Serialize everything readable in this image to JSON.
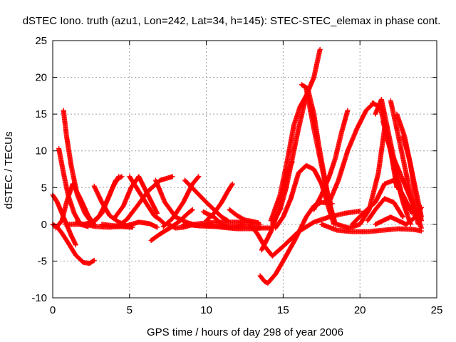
{
  "chart_data": {
    "type": "scatter",
    "title": "dSTEC Iono. truth (azu1, Lon=242, Lat=34, h=145): STEC-STEC_elemax in phase cont.",
    "xlabel": "GPS time / hours of day 298 of year 2006",
    "ylabel": "dSTEC  / TECUs",
    "xlim": [
      0,
      25
    ],
    "ylim": [
      -10,
      25
    ],
    "xticks": [
      0,
      5,
      10,
      15,
      20,
      25
    ],
    "yticks": [
      -10,
      -5,
      0,
      5,
      10,
      15,
      20,
      25
    ],
    "grid": true,
    "marker": "+",
    "color": "#ff0000",
    "series": [
      {
        "x": [
          0.0,
          0.3,
          0.6,
          1.0,
          1.5,
          2.0,
          2.4,
          2.7
        ],
        "y": [
          0.0,
          -0.4,
          -1.2,
          -2.5,
          -4.2,
          -5.2,
          -5.3,
          -4.9
        ]
      },
      {
        "x": [
          0.0,
          0.3,
          0.6,
          0.9,
          1.2,
          1.5
        ],
        "y": [
          4.0,
          3.0,
          1.5,
          0.0,
          -1.5,
          -2.8
        ]
      },
      {
        "x": [
          0.4,
          0.7,
          1.0,
          1.4,
          1.8,
          2.3
        ],
        "y": [
          10.3,
          7.0,
          4.0,
          1.5,
          0.0,
          -0.3
        ]
      },
      {
        "x": [
          0.7,
          0.9,
          1.2,
          1.6,
          2.1,
          2.6
        ],
        "y": [
          15.5,
          12.0,
          8.0,
          4.0,
          1.5,
          0.0
        ]
      },
      {
        "x": [
          0.2,
          0.6,
          0.9,
          1.3,
          1.8,
          2.3,
          2.7
        ],
        "y": [
          -0.5,
          0.5,
          3.0,
          5.5,
          3.5,
          1.2,
          0.0
        ]
      },
      {
        "x": [
          0.8,
          1.3,
          2.0,
          2.8,
          3.6,
          4.4,
          5.2
        ],
        "y": [
          0.0,
          0.0,
          0.0,
          -0.3,
          -0.4,
          -0.3,
          -0.4
        ]
      },
      {
        "x": [
          1.5,
          2.0,
          2.6,
          3.2,
          3.9,
          4.3
        ],
        "y": [
          0.3,
          0.0,
          0.3,
          1.5,
          5.0,
          6.5
        ]
      },
      {
        "x": [
          2.7,
          3.2,
          3.7,
          4.3,
          4.8,
          5.2
        ],
        "y": [
          5.2,
          3.0,
          1.2,
          0.3,
          -0.2,
          -0.4
        ]
      },
      {
        "x": [
          2.5,
          3.0,
          3.6,
          4.1,
          4.5
        ],
        "y": [
          0.0,
          1.0,
          3.5,
          6.0,
          6.5
        ]
      },
      {
        "x": [
          3.2,
          4.0,
          4.8,
          5.6,
          6.3,
          6.8
        ],
        "y": [
          0.0,
          -0.2,
          -0.2,
          0.3,
          0.1,
          -0.4
        ]
      },
      {
        "x": [
          4.0,
          4.6,
          5.1,
          5.6,
          6.2,
          6.8
        ],
        "y": [
          0.8,
          2.5,
          5.0,
          6.5,
          4.0,
          1.5
        ]
      },
      {
        "x": [
          4.2,
          4.8,
          5.5,
          6.2,
          7.0,
          7.8
        ],
        "y": [
          -0.3,
          0.6,
          2.5,
          4.5,
          6.0,
          6.5
        ]
      },
      {
        "x": [
          5.0,
          5.6,
          6.2,
          6.6,
          7.0,
          7.3
        ],
        "y": [
          6.5,
          4.5,
          2.5,
          1.2,
          0.6,
          0.0
        ]
      },
      {
        "x": [
          6.7,
          7.3,
          8.0,
          8.8,
          9.5,
          10.3,
          11.0,
          12.0,
          13.0,
          13.6
        ],
        "y": [
          6.0,
          3.0,
          1.0,
          0.2,
          -0.2,
          -0.2,
          -0.4,
          -0.6,
          -0.6,
          -0.5
        ]
      },
      {
        "x": [
          6.4,
          7.0,
          7.7,
          8.3,
          8.8,
          9.1
        ],
        "y": [
          -2.2,
          -1.3,
          -0.4,
          0.5,
          1.5,
          2.0
        ]
      },
      {
        "x": [
          7.2,
          7.8,
          8.5,
          9.1,
          9.5
        ],
        "y": [
          -0.3,
          0.8,
          3.0,
          5.5,
          6.5
        ]
      },
      {
        "x": [
          7.5,
          8.0,
          8.5,
          9.2,
          10.0,
          11.0,
          12.0,
          13.0,
          13.5
        ],
        "y": [
          0.0,
          -0.5,
          -0.4,
          0.0,
          0.2,
          0.3,
          0.3,
          0.2,
          0.0
        ]
      },
      {
        "x": [
          8.6,
          9.3,
          10.0,
          10.5,
          11.0,
          11.4
        ],
        "y": [
          6.0,
          4.5,
          3.0,
          2.0,
          1.0,
          0.5
        ]
      },
      {
        "x": [
          8.5,
          9.5,
          10.5,
          11.5,
          12.5,
          13.5,
          14.2
        ],
        "y": [
          0.0,
          -0.2,
          -0.3,
          -0.3,
          -0.3,
          -0.5,
          -0.5
        ]
      },
      {
        "x": [
          9.8,
          10.5,
          11.0,
          11.5,
          12.0,
          12.4
        ],
        "y": [
          1.7,
          1.0,
          0.0,
          -0.5,
          -0.4,
          -0.1
        ]
      },
      {
        "x": [
          10.0,
          10.5,
          11.0,
          11.4,
          11.7
        ],
        "y": [
          0.5,
          1.5,
          3.0,
          4.5,
          5.5
        ]
      },
      {
        "x": [
          11.5,
          12.0,
          12.5,
          13.0,
          13.4
        ],
        "y": [
          2.0,
          1.2,
          0.6,
          0.4,
          0.2
        ]
      },
      {
        "x": [
          12.8,
          13.3,
          13.8,
          14.3,
          15.0,
          16.0,
          17.0,
          18.0,
          19.0,
          20.0
        ],
        "y": [
          0.0,
          -1.2,
          -3.0,
          -4.3,
          -3.0,
          -1.0,
          0.3,
          1.0,
          1.5,
          1.8
        ]
      },
      {
        "x": [
          13.5,
          13.8,
          14.0,
          14.5,
          15.0,
          15.8,
          16.5,
          17.0,
          17.5,
          18.2
        ],
        "y": [
          -7.0,
          -7.8,
          -8.0,
          -6.8,
          -5.0,
          -2.0,
          1.0,
          2.5,
          3.0,
          2.8
        ]
      },
      {
        "x": [
          13.6,
          14.2,
          14.8,
          15.2,
          15.6
        ],
        "y": [
          -3.5,
          -1.0,
          2.5,
          7.0,
          8.5
        ]
      },
      {
        "x": [
          14.3,
          14.8,
          15.2,
          15.6,
          16.0,
          16.5,
          17.0,
          17.4
        ],
        "y": [
          0.0,
          2.0,
          5.0,
          9.0,
          13.0,
          17.5,
          20.0,
          23.8
        ]
      },
      {
        "x": [
          14.2,
          14.8,
          15.3,
          15.7,
          16.1,
          16.5
        ],
        "y": [
          0.5,
          4.0,
          9.0,
          13.5,
          16.0,
          17.5
        ]
      },
      {
        "x": [
          14.5,
          15.0,
          15.5,
          16.0,
          16.5,
          17.0,
          17.5,
          18.0,
          18.3
        ],
        "y": [
          -0.5,
          1.0,
          3.5,
          7.0,
          8.0,
          7.5,
          5.5,
          2.0,
          0.0
        ]
      },
      {
        "x": [
          16.2,
          16.6,
          17.0,
          17.3,
          17.6,
          18.0,
          18.4
        ],
        "y": [
          19.0,
          18.5,
          15.0,
          11.0,
          7.5,
          3.0,
          0.0
        ]
      },
      {
        "x": [
          16.5,
          17.0,
          17.5,
          18.0,
          18.4
        ],
        "y": [
          18.5,
          13.0,
          8.0,
          3.0,
          0.0
        ]
      },
      {
        "x": [
          17.0,
          17.5,
          18.0,
          18.4,
          18.8,
          19.2
        ],
        "y": [
          2.0,
          4.0,
          6.5,
          9.0,
          12.5,
          15.5
        ]
      },
      {
        "x": [
          18.0,
          18.6,
          19.2,
          19.8,
          20.4,
          20.9
        ],
        "y": [
          3.0,
          6.0,
          10.0,
          13.0,
          15.5,
          16.5
        ]
      },
      {
        "x": [
          17.5,
          18.5,
          19.5,
          20.5,
          21.5,
          22.5,
          23.5,
          24.0
        ],
        "y": [
          0.0,
          -0.8,
          -1.0,
          -1.0,
          -0.8,
          -0.6,
          -0.7,
          -0.9
        ]
      },
      {
        "x": [
          18.5,
          19.3,
          20.0,
          20.6,
          21.2,
          21.6,
          22.0,
          22.4
        ],
        "y": [
          0.0,
          -0.5,
          0.0,
          2.0,
          7.0,
          13.0,
          10.0,
          5.0
        ]
      },
      {
        "x": [
          20.8,
          21.3,
          21.8,
          22.3,
          22.8,
          23.3
        ],
        "y": [
          16.5,
          16.0,
          12.0,
          7.0,
          3.0,
          0.0
        ]
      },
      {
        "x": [
          21.0,
          21.4,
          21.8,
          22.2,
          22.6,
          23.0
        ],
        "y": [
          15.0,
          17.0,
          13.0,
          9.0,
          5.0,
          2.0
        ]
      },
      {
        "x": [
          22.0,
          22.5,
          23.0,
          23.4,
          23.8
        ],
        "y": [
          16.8,
          12.0,
          7.0,
          3.0,
          0.0
        ]
      },
      {
        "x": [
          21.5,
          22.0,
          22.5,
          23.0,
          23.5,
          24.0
        ],
        "y": [
          14.0,
          10.0,
          7.5,
          5.0,
          2.5,
          -0.5
        ]
      },
      {
        "x": [
          22.4,
          22.9,
          23.3,
          23.6,
          24.0
        ],
        "y": [
          15.0,
          12.0,
          8.0,
          4.0,
          0.5
        ]
      },
      {
        "x": [
          22.8,
          23.2,
          23.5,
          23.8,
          24.0
        ],
        "y": [
          12.0,
          9.0,
          6.0,
          3.0,
          1.0
        ]
      },
      {
        "x": [
          19.5,
          20.2,
          21.0,
          21.6,
          22.2,
          22.8,
          23.4
        ],
        "y": [
          0.0,
          1.5,
          3.0,
          5.5,
          6.0,
          4.0,
          1.5
        ]
      },
      {
        "x": [
          20.5,
          21.0,
          21.6,
          22.2,
          22.8
        ],
        "y": [
          0.5,
          2.0,
          3.5,
          3.0,
          1.0
        ]
      },
      {
        "x": [
          21.0,
          21.5,
          22.0,
          22.5,
          23.0,
          23.5,
          24.0
        ],
        "y": [
          0.0,
          0.5,
          1.0,
          0.5,
          0.0,
          0.8,
          2.3
        ]
      }
    ]
  }
}
